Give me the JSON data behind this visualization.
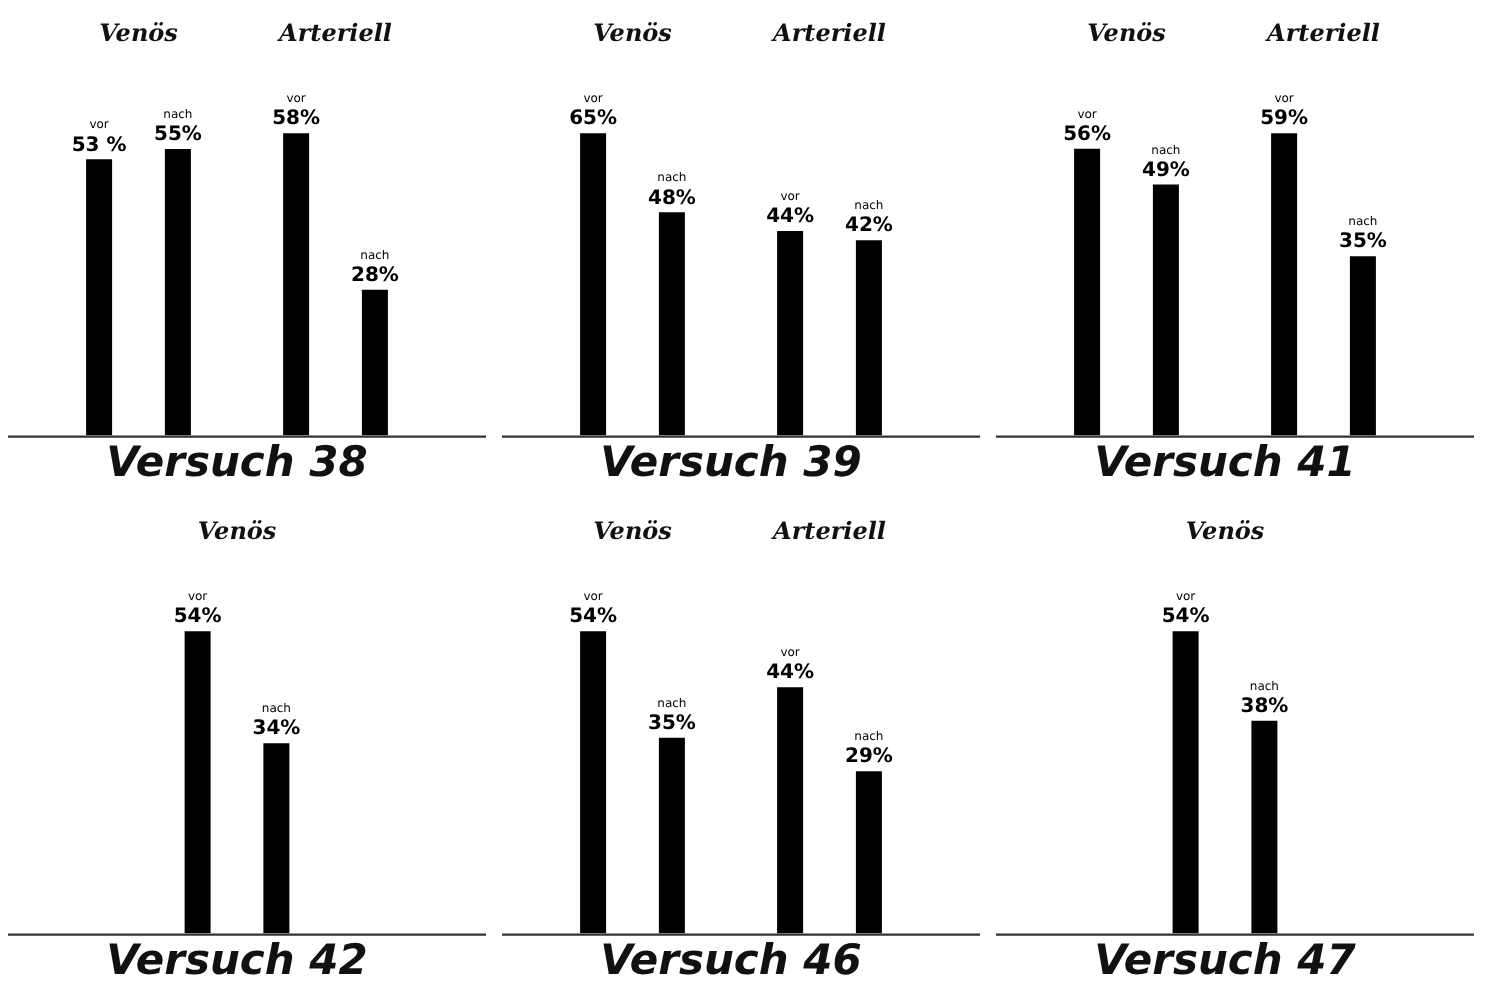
{
  "chart_data": [
    {
      "type": "bar",
      "title": "Versuch 38",
      "categories": [
        "Venös",
        "Arteriell"
      ],
      "tick_labels": "x",
      "series": [
        {
          "name": "vor",
          "color": "#000000",
          "values": [
            53,
            58
          ],
          "value_labels": [
            "53 %",
            "58%"
          ]
        },
        {
          "name": "nach",
          "color": "#000000",
          "values": [
            55,
            28
          ],
          "value_labels": [
            "55%",
            "28%"
          ]
        }
      ]
    },
    {
      "type": "bar",
      "title": "Versuch 39",
      "categories": [
        "Venös",
        "Arteriell"
      ],
      "tick_labels": "x",
      "series": [
        {
          "name": "vor",
          "color": "#000000",
          "values": [
            65,
            44
          ],
          "value_labels": [
            "65%",
            "44%"
          ]
        },
        {
          "name": "nach",
          "color": "#000000",
          "values": [
            48,
            42
          ],
          "value_labels": [
            "48%",
            "42%"
          ]
        }
      ]
    },
    {
      "type": "bar",
      "title": "Versuch 41",
      "categories": [
        "Venös",
        "Arteriell"
      ],
      "tick_labels": "x",
      "series": [
        {
          "name": "vor",
          "color": "#000000",
          "values": [
            56,
            59
          ],
          "value_labels": [
            "56%",
            "59%"
          ]
        },
        {
          "name": "nach",
          "color": "#000000",
          "values": [
            49,
            35
          ],
          "value_labels": [
            "49%",
            "35%"
          ]
        }
      ]
    },
    {
      "type": "bar",
      "title": "Versuch 42",
      "categories": [
        "Venös"
      ],
      "tick_labels": "x",
      "series": [
        {
          "name": "vor",
          "color": "#000000",
          "values": [
            54
          ],
          "value_labels": [
            "54%"
          ]
        },
        {
          "name": "nach",
          "color": "#000000",
          "values": [
            34
          ],
          "value_labels": [
            "34%"
          ]
        }
      ]
    },
    {
      "type": "bar",
      "title": "Versuch 46",
      "categories": [
        "Venös",
        "Arteriell"
      ],
      "tick_labels": "x",
      "series": [
        {
          "name": "vor",
          "color": "#000000",
          "values": [
            54,
            44
          ],
          "value_labels": [
            "54%",
            "44%"
          ]
        },
        {
          "name": "nach",
          "color": "#000000",
          "values": [
            35,
            29
          ],
          "value_labels": [
            "35%",
            "29%"
          ]
        }
      ]
    },
    {
      "type": "bar",
      "title": "Versuch 47",
      "categories": [
        "Venös"
      ],
      "tick_labels": "x",
      "series": [
        {
          "name": "vor",
          "color": "#000000",
          "values": [
            54
          ],
          "value_labels": [
            "54%"
          ]
        },
        {
          "name": "nach",
          "color": "#000000",
          "values": [
            38
          ],
          "value_labels": [
            "38%"
          ]
        }
      ]
    }
  ]
}
